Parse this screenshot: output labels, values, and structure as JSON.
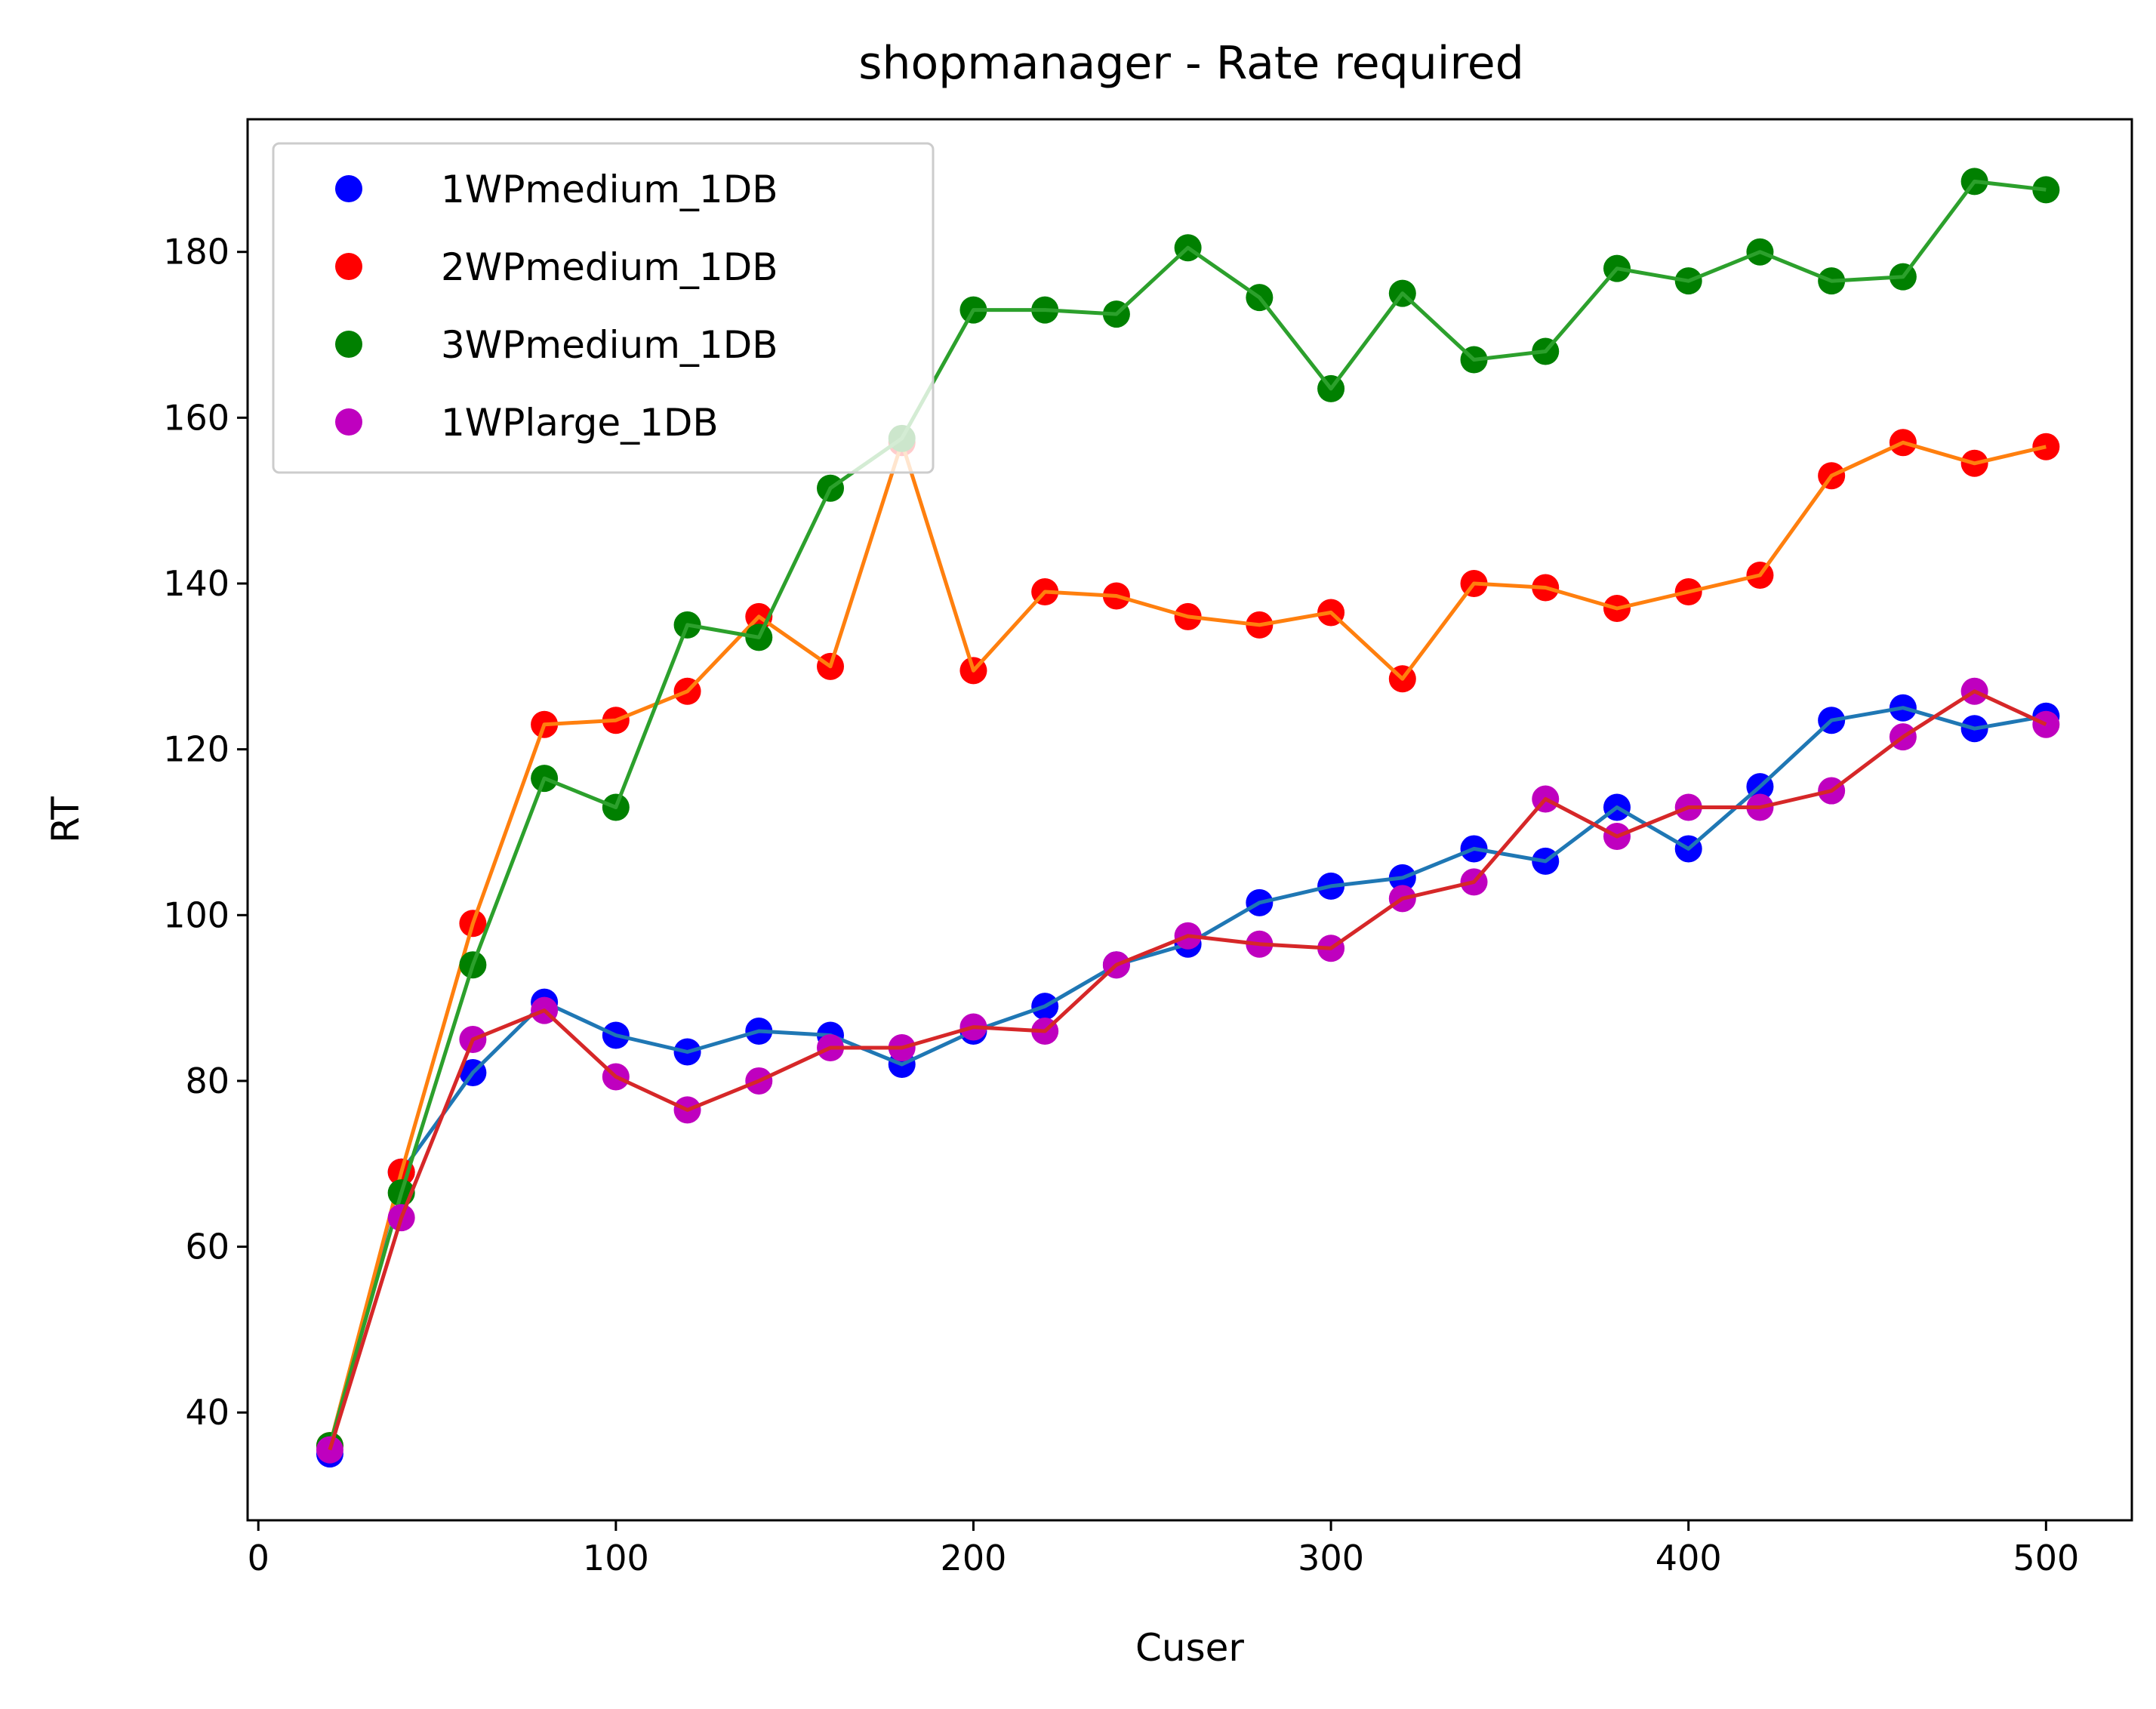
{
  "chart_data": {
    "type": "scatter",
    "title": "shopmanager - Rate required",
    "xlabel": "Cuser",
    "ylabel": "RT",
    "xlim": [
      -3,
      524
    ],
    "ylim": [
      27,
      196
    ],
    "xticks": [
      0,
      100,
      200,
      300,
      400,
      500
    ],
    "yticks": [
      40,
      60,
      80,
      100,
      120,
      140,
      160,
      180
    ],
    "grid": false,
    "legend_position": "upper-left",
    "x": [
      20,
      40,
      60,
      80,
      100,
      120,
      140,
      160,
      180,
      200,
      220,
      240,
      260,
      280,
      300,
      320,
      340,
      360,
      380,
      400,
      420,
      440,
      460,
      480,
      500
    ],
    "series": [
      {
        "name": "1WPmedium_1DB",
        "marker_color": "#0000ff",
        "line_color": "#1f77b4",
        "values": [
          35,
          69,
          81,
          89.5,
          85.5,
          83.5,
          86,
          85.5,
          82,
          86,
          89,
          94,
          96.5,
          101.5,
          103.5,
          104.5,
          108,
          106.5,
          113,
          108,
          115.5,
          123.5,
          125,
          122.5,
          124
        ]
      },
      {
        "name": "2WPmedium_1DB",
        "marker_color": "#ff0000",
        "line_color": "#ff7f0e",
        "values": [
          36,
          69,
          99,
          123,
          123.5,
          127,
          136,
          130,
          157,
          129.5,
          139,
          138.5,
          136,
          135,
          136.5,
          128.5,
          140,
          139.5,
          137,
          139,
          141,
          153,
          157,
          154.5,
          156.5
        ]
      },
      {
        "name": "3WPmedium_1DB",
        "marker_color": "#008000",
        "line_color": "#2ca02c",
        "values": [
          36,
          66.5,
          94,
          116.5,
          113,
          135,
          133.5,
          151.5,
          157.5,
          173,
          173,
          172.5,
          180.5,
          174.5,
          163.5,
          175,
          167,
          168,
          178,
          176.5,
          180,
          176.5,
          177,
          188.5,
          187.5
        ]
      },
      {
        "name": "1WPlarge_1DB",
        "marker_color": "#bf00bf",
        "line_color": "#d62728",
        "values": [
          35.5,
          63.5,
          85,
          88.5,
          80.5,
          76.5,
          80,
          84,
          84,
          86.5,
          86,
          94,
          97.5,
          96.5,
          96,
          102,
          104,
          114,
          109.5,
          113,
          113,
          115,
          121.5,
          127,
          123
        ]
      }
    ]
  }
}
